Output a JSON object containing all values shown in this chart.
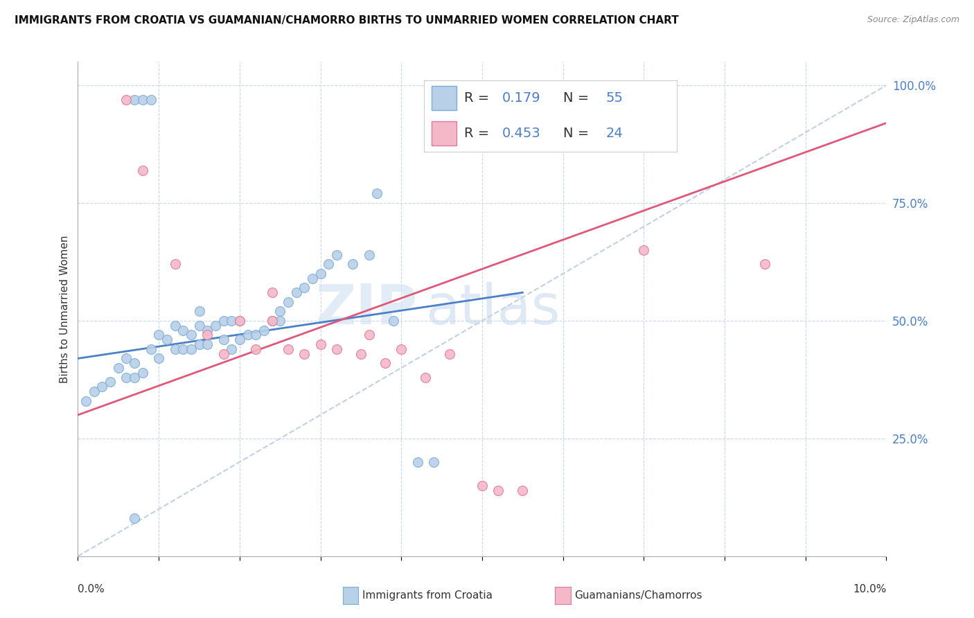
{
  "title": "IMMIGRANTS FROM CROATIA VS GUAMANIAN/CHAMORRO BIRTHS TO UNMARRIED WOMEN CORRELATION CHART",
  "source": "Source: ZipAtlas.com",
  "ylabel": "Births to Unmarried Women",
  "legend_label1": "Immigrants from Croatia",
  "legend_label2": "Guamanians/Chamorros",
  "R1": "0.179",
  "N1": "55",
  "R2": "0.453",
  "N2": "24",
  "color_blue_fill": "#b8d0e8",
  "color_blue_edge": "#7aadd4",
  "color_pink_fill": "#f5b8c8",
  "color_pink_edge": "#e07898",
  "color_line_blue": "#4a80c8",
  "color_line_pink": "#e05878",
  "color_line_dashed": "#b8cce0",
  "watermark_zip": "ZIP",
  "watermark_atlas": "atlas",
  "blue_scatter_x": [
    0.007,
    0.008,
    0.009,
    0.001,
    0.002,
    0.003,
    0.004,
    0.005,
    0.006,
    0.006,
    0.007,
    0.007,
    0.008,
    0.009,
    0.01,
    0.01,
    0.011,
    0.012,
    0.012,
    0.013,
    0.013,
    0.014,
    0.014,
    0.015,
    0.015,
    0.015,
    0.016,
    0.016,
    0.017,
    0.018,
    0.018,
    0.019,
    0.019,
    0.02,
    0.02,
    0.021,
    0.022,
    0.023,
    0.024,
    0.025,
    0.025,
    0.026,
    0.027,
    0.028,
    0.029,
    0.03,
    0.031,
    0.032,
    0.034,
    0.036,
    0.037,
    0.039,
    0.042,
    0.044,
    0.007
  ],
  "blue_scatter_y": [
    0.97,
    0.97,
    0.97,
    0.33,
    0.35,
    0.36,
    0.37,
    0.4,
    0.38,
    0.42,
    0.38,
    0.41,
    0.39,
    0.44,
    0.42,
    0.47,
    0.46,
    0.44,
    0.49,
    0.44,
    0.48,
    0.44,
    0.47,
    0.45,
    0.49,
    0.52,
    0.45,
    0.48,
    0.49,
    0.46,
    0.5,
    0.44,
    0.5,
    0.46,
    0.5,
    0.47,
    0.47,
    0.48,
    0.5,
    0.5,
    0.52,
    0.54,
    0.56,
    0.57,
    0.59,
    0.6,
    0.62,
    0.64,
    0.62,
    0.64,
    0.77,
    0.5,
    0.2,
    0.2,
    0.08
  ],
  "pink_scatter_x": [
    0.006,
    0.008,
    0.012,
    0.016,
    0.018,
    0.02,
    0.022,
    0.024,
    0.024,
    0.026,
    0.028,
    0.03,
    0.032,
    0.035,
    0.036,
    0.038,
    0.04,
    0.043,
    0.046,
    0.05,
    0.052,
    0.055,
    0.07,
    0.085
  ],
  "pink_scatter_y": [
    0.97,
    0.82,
    0.62,
    0.47,
    0.43,
    0.5,
    0.44,
    0.5,
    0.56,
    0.44,
    0.43,
    0.45,
    0.44,
    0.43,
    0.47,
    0.41,
    0.44,
    0.38,
    0.43,
    0.15,
    0.14,
    0.14,
    0.65,
    0.62
  ],
  "blue_line_x": [
    0.0,
    0.055
  ],
  "blue_line_y": [
    0.42,
    0.56
  ],
  "pink_line_x": [
    0.0,
    0.1
  ],
  "pink_line_y": [
    0.3,
    0.92
  ],
  "dashed_line_x": [
    0.0,
    0.1
  ],
  "dashed_line_y": [
    0.0,
    1.0
  ],
  "xmin": 0.0,
  "xmax": 0.1,
  "ymin": 0.0,
  "ymax": 1.05
}
